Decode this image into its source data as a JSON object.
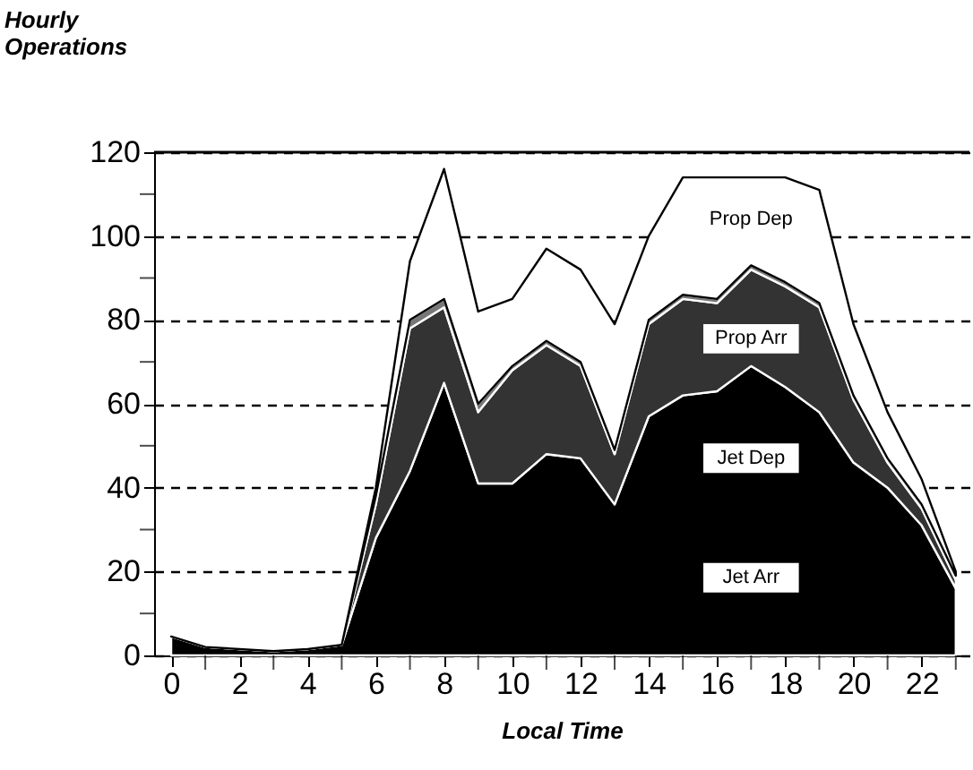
{
  "chart_data": {
    "type": "area",
    "stacked": true,
    "ylabel": "Hourly Operations",
    "xlabel": "Local Time",
    "x": [
      0,
      1,
      2,
      3,
      4,
      5,
      6,
      7,
      8,
      9,
      10,
      11,
      12,
      13,
      14,
      15,
      16,
      17,
      18,
      19,
      20,
      21,
      22,
      23
    ],
    "series": [
      {
        "name": "Jet Arr",
        "color": "#000000",
        "values": [
          4.5,
          2,
          1.5,
          1,
          1.5,
          2.5,
          28,
          44,
          65,
          41,
          41,
          48,
          47,
          36,
          57,
          62,
          63,
          69,
          64,
          58,
          46,
          40,
          31,
          16
        ]
      },
      {
        "name": "Jet Dep",
        "color": "#333333",
        "values": [
          0,
          0,
          0,
          0,
          0,
          0,
          8,
          34,
          18,
          17,
          27,
          26,
          22,
          12,
          22,
          23,
          21,
          23,
          24,
          25,
          15,
          6,
          4,
          2
        ]
      },
      {
        "name": "Prop Arr",
        "color": "#777777",
        "values": [
          0,
          0,
          0,
          0,
          0,
          0,
          2,
          2,
          2,
          2,
          1,
          1,
          1,
          1,
          1,
          1,
          1,
          1,
          1,
          1,
          1,
          1,
          1,
          1
        ]
      },
      {
        "name": "Prop Dep",
        "color": "#ffffff",
        "values": [
          0,
          0,
          0,
          0,
          0,
          0,
          2,
          14,
          31,
          22,
          16,
          22,
          22,
          30,
          20,
          28,
          29,
          21,
          25,
          27,
          17,
          11,
          6,
          1
        ]
      }
    ],
    "xlim": [
      -0.5,
      23.4
    ],
    "xticks": [
      0,
      {
        "value": 1,
        "label": null
      },
      2,
      {
        "value": 3,
        "label": null
      },
      4,
      {
        "value": 5,
        "label": null
      },
      6,
      {
        "value": 7,
        "label": null
      },
      8,
      {
        "value": 9,
        "label": null
      },
      10,
      {
        "value": 11,
        "label": null
      },
      12,
      {
        "value": 13,
        "label": null
      },
      14,
      {
        "value": 15,
        "label": null
      },
      16,
      {
        "value": 17,
        "label": null
      },
      18,
      {
        "value": 19,
        "label": null
      },
      20,
      {
        "value": 21,
        "label": null
      },
      22,
      {
        "value": 23,
        "label": null
      }
    ],
    "ylim": [
      0,
      120
    ],
    "yticks": [
      0,
      {
        "value": 10,
        "label": null
      },
      20,
      {
        "value": 30,
        "label": null
      },
      40,
      {
        "value": 50,
        "label": null
      },
      60,
      {
        "value": 70,
        "label": null
      },
      80,
      {
        "value": 90,
        "label": null
      },
      100,
      {
        "value": 110,
        "label": null
      },
      120
    ],
    "grid": "y",
    "legend": false
  }
}
